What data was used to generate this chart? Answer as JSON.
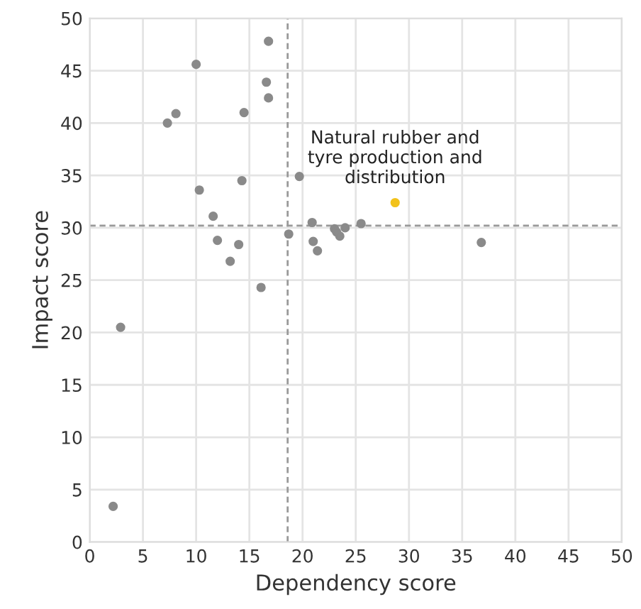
{
  "chart_data": {
    "type": "scatter",
    "xlabel": "Dependency score",
    "ylabel": "Impact score",
    "xlim": [
      0,
      50
    ],
    "ylim": [
      0,
      50
    ],
    "xticks": [
      0,
      5,
      10,
      15,
      20,
      25,
      30,
      35,
      40,
      45,
      50
    ],
    "yticks": [
      0,
      5,
      10,
      15,
      20,
      25,
      30,
      35,
      40,
      45,
      50
    ],
    "grid": true,
    "marker": "circle",
    "series": [
      {
        "color": "#8a8a8a",
        "x": [
          16.8,
          10.0,
          16.6,
          16.8,
          8.1,
          7.3,
          14.5,
          19.7,
          10.3,
          14.3,
          11.6,
          20.9,
          18.7,
          12.0,
          14.0,
          21.0,
          21.4,
          13.2,
          23.0,
          23.2,
          23.5,
          24.0,
          25.5,
          36.8,
          16.1,
          2.9,
          2.2
        ],
        "values": [
          47.8,
          45.6,
          43.9,
          42.4,
          40.9,
          40.0,
          41.0,
          34.9,
          33.6,
          34.5,
          31.1,
          30.5,
          29.4,
          28.8,
          28.4,
          28.7,
          27.8,
          26.8,
          29.9,
          29.6,
          29.2,
          30.0,
          30.4,
          28.6,
          24.3,
          20.5,
          3.4
        ]
      },
      {
        "color": "#f2c21b",
        "x": [
          28.7
        ],
        "values": [
          32.4
        ]
      }
    ],
    "ref_lines": [
      {
        "axis": "x",
        "value": 18.6,
        "color": "#999999",
        "line_style": "dashed"
      },
      {
        "axis": "y",
        "value": 30.2,
        "color": "#999999",
        "line_style": "dashed"
      }
    ],
    "annotations": [
      {
        "text": "Natural rubber and\ntyre production and\ndistribution",
        "x": 28.7,
        "y": 32.4
      }
    ]
  }
}
